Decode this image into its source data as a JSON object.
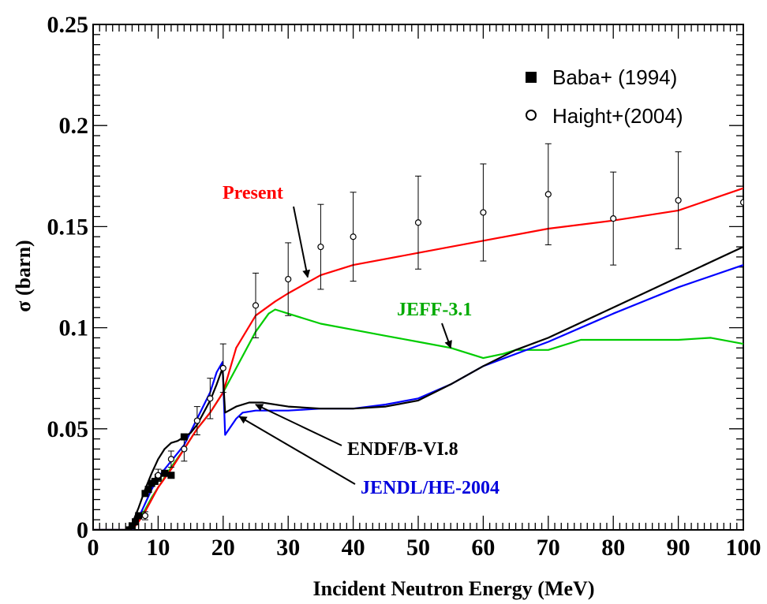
{
  "chart_data": {
    "type": "line",
    "xlabel": "Incident Neutron Energy (MeV)",
    "ylabel": "σ (barn)",
    "xlim": [
      0,
      100
    ],
    "ylim": [
      0,
      0.25
    ],
    "x_ticks": [
      0,
      10,
      20,
      30,
      40,
      50,
      60,
      70,
      80,
      90,
      100
    ],
    "y_ticks": [
      0,
      0.05,
      0.1,
      0.15,
      0.2,
      0.25
    ],
    "x_tick_labels": [
      "0",
      "10",
      "20",
      "30",
      "40",
      "50",
      "60",
      "70",
      "80",
      "90",
      "100"
    ],
    "y_tick_labels": [
      "0",
      "0.05",
      "0.1",
      "0.15",
      "0.2",
      "0.25"
    ],
    "grid": false,
    "legend_position": "top-right",
    "legend": [
      {
        "label": "Baba+  (1994)",
        "marker": "filled-square"
      },
      {
        "label": "Haight+(2004)",
        "marker": "open-circle"
      }
    ],
    "series": [
      {
        "name": "Present",
        "color": "#ff0000",
        "x": [
          0,
          5,
          6,
          7,
          8,
          9,
          10,
          12,
          14,
          16,
          18,
          20,
          22,
          25,
          28,
          30,
          35,
          40,
          50,
          60,
          70,
          80,
          90,
          100
        ],
        "y": [
          0,
          0,
          0.0,
          0.004,
          0.009,
          0.015,
          0.021,
          0.03,
          0.04,
          0.05,
          0.058,
          0.068,
          0.09,
          0.106,
          0.113,
          0.117,
          0.126,
          0.131,
          0.137,
          0.143,
          0.149,
          0.153,
          0.158,
          0.169
        ]
      },
      {
        "name": "JEFF-3.1",
        "color": "#00cc00",
        "x": [
          0,
          5,
          6,
          7,
          8,
          9,
          10,
          12,
          14,
          16,
          18,
          20,
          22,
          25,
          27,
          28,
          30,
          35,
          40,
          45,
          50,
          55,
          60,
          63,
          65,
          68,
          70,
          75,
          80,
          90,
          95,
          100
        ],
        "y": [
          0,
          0,
          0.0,
          0.005,
          0.01,
          0.016,
          0.021,
          0.031,
          0.04,
          0.05,
          0.058,
          0.068,
          0.08,
          0.098,
          0.107,
          0.109,
          0.107,
          0.102,
          0.099,
          0.096,
          0.093,
          0.09,
          0.085,
          0.087,
          0.089,
          0.089,
          0.089,
          0.094,
          0.094,
          0.094,
          0.095,
          0.092
        ]
      },
      {
        "name": "ENDF/B-VI.8",
        "color": "#000000",
        "x": [
          0,
          5,
          6,
          7,
          8,
          9,
          10,
          11,
          12,
          13,
          14,
          15,
          16,
          17,
          18,
          19,
          19.9,
          20.3,
          22,
          24,
          26,
          30,
          35,
          40,
          45,
          50,
          55,
          60,
          65,
          70,
          80,
          90,
          100
        ],
        "y": [
          0,
          0,
          0.003,
          0.011,
          0.02,
          0.028,
          0.035,
          0.04,
          0.043,
          0.044,
          0.046,
          0.048,
          0.052,
          0.058,
          0.064,
          0.072,
          0.08,
          0.058,
          0.061,
          0.063,
          0.063,
          0.061,
          0.06,
          0.06,
          0.061,
          0.064,
          0.072,
          0.081,
          0.089,
          0.095,
          0.11,
          0.125,
          0.14
        ]
      },
      {
        "name": "JENDL/HE-2004",
        "color": "#0000ff",
        "x": [
          0,
          5,
          6,
          7,
          8,
          9,
          10,
          12,
          14,
          16,
          18,
          19,
          19.9,
          20.3,
          22,
          23,
          25,
          30,
          35,
          40,
          45,
          50,
          55,
          60,
          70,
          80,
          90,
          100
        ],
        "y": [
          0,
          0,
          0.0,
          0.006,
          0.013,
          0.02,
          0.026,
          0.034,
          0.042,
          0.055,
          0.068,
          0.078,
          0.083,
          0.047,
          0.055,
          0.058,
          0.059,
          0.059,
          0.06,
          0.06,
          0.062,
          0.065,
          0.072,
          0.081,
          0.093,
          0.107,
          0.12,
          0.131
        ]
      }
    ],
    "markers": [
      {
        "name": "Baba+  (1994)",
        "marker": "filled-square",
        "x": [
          5.5,
          6,
          6.5,
          7,
          8,
          8.5,
          9,
          9.5,
          10,
          11,
          12,
          14
        ],
        "y": [
          0.0,
          0.002,
          0.004,
          0.007,
          0.018,
          0.02,
          0.023,
          0.024,
          0.026,
          0.028,
          0.027,
          0.046
        ]
      },
      {
        "name": "Haight+(2004)",
        "marker": "open-circle",
        "x": [
          8,
          10,
          12,
          14,
          16,
          18,
          20,
          25,
          30,
          35,
          40,
          50,
          60,
          70,
          80,
          90,
          100
        ],
        "y": [
          0.007,
          0.027,
          0.035,
          0.04,
          0.054,
          0.065,
          0.08,
          0.111,
          0.124,
          0.14,
          0.145,
          0.152,
          0.157,
          0.166,
          0.154,
          0.163,
          0.162
        ],
        "err": [
          0.002,
          0.003,
          0.004,
          0.006,
          0.007,
          0.01,
          0.012,
          0.016,
          0.018,
          0.021,
          0.022,
          0.023,
          0.024,
          0.025,
          0.023,
          0.024,
          0.0
        ]
      }
    ],
    "annotations": [
      {
        "text": "Present",
        "color": "#ff0000",
        "target": [
          33,
          0.125
        ]
      },
      {
        "text": "JEFF-3.1",
        "color": "#00aa00",
        "target": [
          55,
          0.09
        ]
      },
      {
        "text": "ENDF/B-VI.8",
        "color": "#000000",
        "target": [
          25,
          0.062
        ]
      },
      {
        "text": "JENDL/HE-2004",
        "color": "#0000dd",
        "target": [
          22.5,
          0.056
        ]
      }
    ]
  }
}
